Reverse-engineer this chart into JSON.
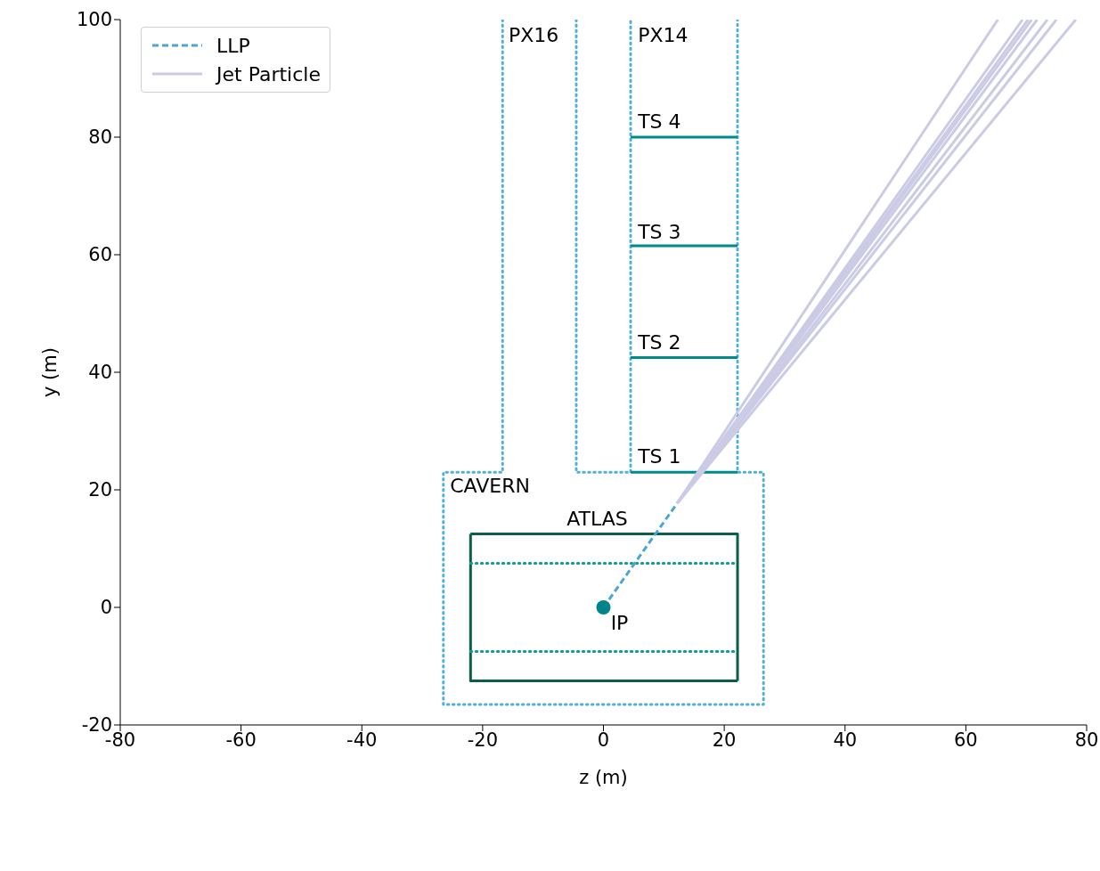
{
  "chart_data": {
    "type": "line",
    "xlabel": "z (m)",
    "ylabel": "y (m)",
    "xlim": [
      -80,
      80
    ],
    "xticks": [
      -80,
      -60,
      -40,
      -20,
      0,
      20,
      40,
      60,
      80
    ],
    "ylim": [
      -20,
      100
    ],
    "yticks": [
      -20,
      0,
      20,
      40,
      60,
      80,
      100
    ],
    "grid": false,
    "legend": "top left",
    "series": [
      {
        "x": [
          -16.7,
          -16.7,
          -26.5,
          -26.5,
          26.5,
          26.5,
          22.2,
          22.2
        ],
        "values": [
          100,
          23,
          23,
          -16.5,
          -16.5,
          23,
          23,
          100
        ],
        "color": "#4fb0d8",
        "line_style": "dotted"
      },
      {
        "x": [
          -4.5,
          -4.5,
          4.5,
          4.5
        ],
        "values": [
          100,
          23,
          23,
          100
        ],
        "color": "#4fb0d8",
        "line_style": "dotted"
      },
      {
        "x": [
          -22,
          22.2,
          22.2
        ],
        "values": [
          12.5,
          12.5,
          -12.5
        ],
        "color": "#0b5e4a",
        "line_style": "solid"
      },
      {
        "x": [
          22.2,
          -22,
          -22
        ],
        "values": [
          -12.5,
          -12.5,
          12.5
        ],
        "color": "#0b5e4a",
        "line_style": "solid"
      },
      {
        "x": [
          -22,
          22.2
        ],
        "values": [
          7.5,
          7.5
        ],
        "color": "#129c9c",
        "line_style": "dotted"
      },
      {
        "x": [
          -22,
          22.2
        ],
        "values": [
          -7.5,
          -7.5
        ],
        "color": "#129c9c",
        "line_style": "dotted"
      },
      {
        "x": [
          4.5,
          22.2
        ],
        "values": [
          23,
          23
        ],
        "color": "#008b8b",
        "line_style": "solid"
      },
      {
        "x": [
          4.5,
          22.2
        ],
        "values": [
          42.5,
          42.5
        ],
        "color": "#008b8b",
        "line_style": "solid"
      },
      {
        "x": [
          4.5,
          22.2
        ],
        "values": [
          61.5,
          61.5
        ],
        "color": "#008b8b",
        "line_style": "solid"
      },
      {
        "x": [
          4.5,
          22.2
        ],
        "values": [
          80,
          80
        ],
        "color": "#008b8b",
        "line_style": "solid"
      },
      {
        "name": "LLP",
        "x": [
          0,
          12.2
        ],
        "values": [
          0,
          17.7
        ],
        "color": "#4aa6d4",
        "line_style": "dashed"
      },
      {
        "name": "Jet Particle",
        "x": [
          12.2,
          65.3
        ],
        "values": [
          17.7,
          100
        ],
        "color": "#cbcbe6",
        "line_style": "solid"
      },
      {
        "x": [
          12.2,
          69.4
        ],
        "values": [
          17.7,
          100
        ],
        "color": "#cbcbe6",
        "line_style": "solid"
      },
      {
        "x": [
          12.2,
          70.3
        ],
        "values": [
          17.7,
          100
        ],
        "color": "#cbcbe6",
        "line_style": "solid"
      },
      {
        "x": [
          12.2,
          70.9
        ],
        "values": [
          17.7,
          100
        ],
        "color": "#cbcbe6",
        "line_style": "solid"
      },
      {
        "x": [
          12.2,
          71.8
        ],
        "values": [
          17.7,
          100
        ],
        "color": "#cbcbe6",
        "line_style": "solid"
      },
      {
        "x": [
          12.2,
          73.5
        ],
        "values": [
          17.7,
          100
        ],
        "color": "#cbcbe6",
        "line_style": "solid"
      },
      {
        "x": [
          12.2,
          75
        ],
        "values": [
          17.7,
          100
        ],
        "color": "#cbcbe6",
        "line_style": "solid"
      },
      {
        "x": [
          12.2,
          78.2
        ],
        "values": [
          17.7,
          100
        ],
        "color": "#cbcbe6",
        "line_style": "solid"
      },
      {
        "type": "scatter",
        "x": [
          0
        ],
        "values": [
          0
        ],
        "color": "#00838a",
        "marker": "circle"
      }
    ],
    "annotations": [
      "PX16",
      "PX14",
      "TS 4",
      "TS 3",
      "TS 2",
      "TS 1",
      "CAVERN",
      "ATLAS",
      "IP"
    ]
  }
}
